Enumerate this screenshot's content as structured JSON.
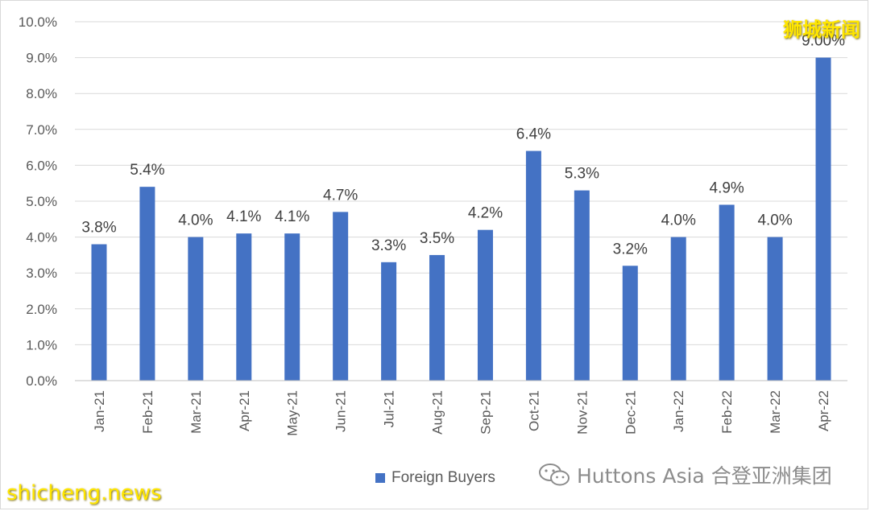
{
  "chart_data": {
    "type": "bar",
    "categories": [
      "Jan-21",
      "Feb-21",
      "Mar-21",
      "Apr-21",
      "May-21",
      "Jun-21",
      "Jul-21",
      "Aug-21",
      "Sep-21",
      "Oct-21",
      "Nov-21",
      "Dec-21",
      "Jan-22",
      "Feb-22",
      "Mar-22",
      "Apr-22"
    ],
    "series": [
      {
        "name": "Foreign Buyers",
        "values": [
          3.8,
          5.4,
          4.0,
          4.1,
          4.1,
          4.7,
          3.3,
          3.5,
          4.2,
          6.4,
          5.3,
          3.2,
          4.0,
          4.9,
          4.0,
          9.0
        ],
        "labels": [
          "3.8%",
          "5.4%",
          "4.0%",
          "4.1%",
          "4.1%",
          "4.7%",
          "3.3%",
          "3.5%",
          "4.2%",
          "6.4%",
          "5.3%",
          "3.2%",
          "4.0%",
          "4.9%",
          "4.0%",
          "9.00%"
        ]
      }
    ],
    "ylim": [
      0,
      10
    ],
    "yticks": [
      "0.0%",
      "1.0%",
      "2.0%",
      "3.0%",
      "4.0%",
      "5.0%",
      "6.0%",
      "7.0%",
      "8.0%",
      "9.0%",
      "10.0%"
    ],
    "grid": true,
    "legend": "bottom-center",
    "bar_color": "#4472c4",
    "title": "",
    "xlabel": "",
    "ylabel": ""
  },
  "legend": {
    "label": "Foreign Buyers"
  },
  "watermarks": {
    "top_right": "狮城新闻",
    "bottom_left": "shicheng.news"
  },
  "source": {
    "label": "Huttons Asia 合登亚洲集团",
    "icon": "wechat-icon"
  }
}
